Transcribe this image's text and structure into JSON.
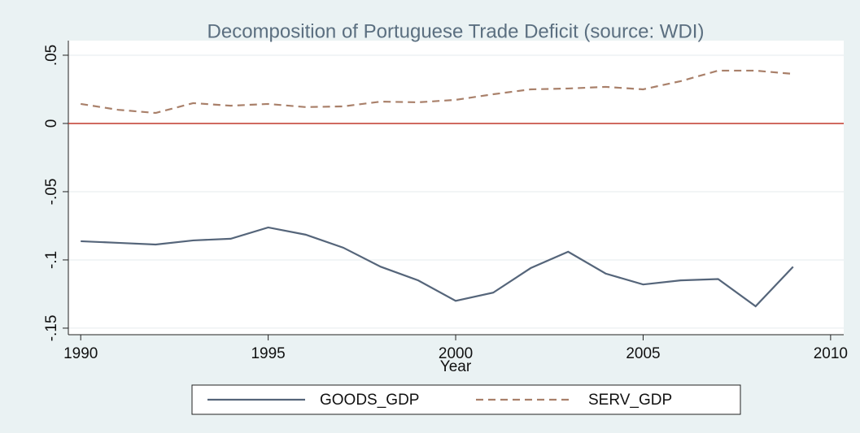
{
  "chart_data": {
    "type": "line",
    "title": "Decomposition of Portuguese Trade Deficit (source: WDI)",
    "x_label": "Year",
    "x": [
      1990,
      1991,
      1992,
      1993,
      1994,
      1995,
      1996,
      1997,
      1998,
      1999,
      2000,
      2001,
      2002,
      2003,
      2004,
      2005,
      2006,
      2007,
      2008,
      2009
    ],
    "series": [
      {
        "name": "GOODS_GDP",
        "color": "#55657a",
        "dash": "solid",
        "values": [
          -0.0863,
          -0.0875,
          -0.0887,
          -0.0857,
          -0.0845,
          -0.0762,
          -0.0815,
          -0.091,
          -0.105,
          -0.115,
          -0.13,
          -0.124,
          -0.106,
          -0.094,
          -0.11,
          -0.118,
          -0.115,
          -0.114,
          -0.134,
          -0.105
        ]
      },
      {
        "name": "SERV_GDP",
        "color": "#a9806a",
        "dash": "dashed",
        "values": [
          0.0143,
          0.01,
          0.0077,
          0.0149,
          0.013,
          0.0143,
          0.012,
          0.0125,
          0.016,
          0.0155,
          0.0173,
          0.0214,
          0.025,
          0.0256,
          0.0268,
          0.025,
          0.031,
          0.0387,
          0.0387,
          0.0363
        ]
      }
    ],
    "reference_line": {
      "value": 0,
      "color": "#c0392b"
    },
    "xlim": [
      1989.67,
      2010.35
    ],
    "xticks": [
      1990,
      1995,
      2000,
      2005,
      2010
    ],
    "ylim": [
      -0.1548,
      0.0607
    ],
    "yticks": [
      {
        "value": -0.15,
        "label": "-.15"
      },
      {
        "value": -0.1,
        "label": "-.1"
      },
      {
        "value": -0.05,
        "label": "-.05"
      },
      0,
      {
        "value": 0.05,
        "label": ".05"
      }
    ],
    "grid": true,
    "legend": "bottom"
  }
}
